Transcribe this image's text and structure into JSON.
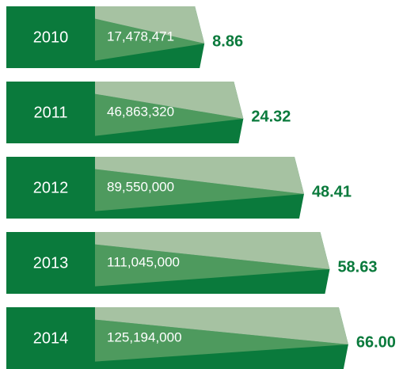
{
  "chart_data": {
    "type": "bar",
    "categories": [
      "2010",
      "2011",
      "2012",
      "2013",
      "2014"
    ],
    "series": [
      {
        "values": [
          17478471,
          46863320,
          89550000,
          111045000,
          125194000
        ],
        "value_labels": [
          "17,478,471",
          "46,863,320",
          "89,550,000",
          "111,045,000",
          "125,194,000"
        ]
      },
      {
        "values": [
          8.86,
          24.32,
          48.41,
          58.63,
          66.0
        ],
        "value_labels": [
          "8.86",
          "24.32",
          "48.41",
          "58.63",
          "66.00"
        ],
        "color": "#0a7a3c"
      }
    ]
  }
}
